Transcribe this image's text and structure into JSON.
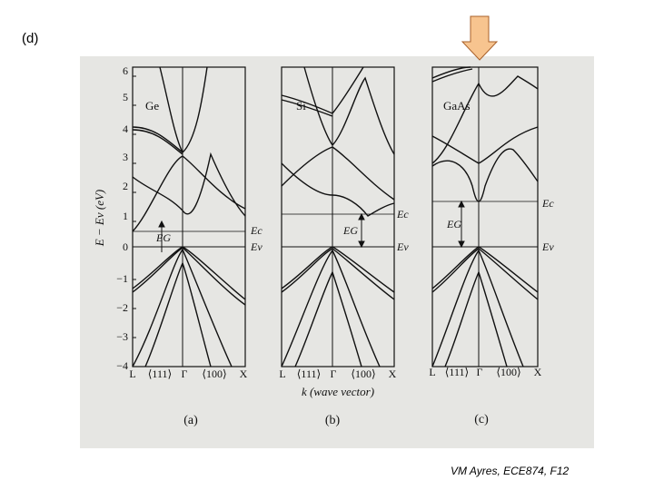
{
  "slide_label": "(d)",
  "footer": "VM Ayres, ECE874, F12",
  "axis": {
    "y_label": "E − Ev (eV)",
    "y_ticks": [
      "6",
      "5",
      "4",
      "3",
      "2",
      "1",
      "0",
      "−1",
      "−2",
      "−3",
      "−4"
    ],
    "x_label": "k (wave vector)"
  },
  "panels": [
    {
      "material": "Ge",
      "caption": "(a)",
      "gap": "EG",
      "ec": "Ec",
      "ev": "Ev",
      "kx": [
        "L",
        "⟨111⟩",
        "Γ",
        "⟨100⟩",
        "X"
      ]
    },
    {
      "material": "Si",
      "caption": "(b)",
      "gap": "EG",
      "ec": "Ec",
      "ev": "Ev",
      "kx": [
        "L",
        "⟨111⟩",
        "Γ",
        "⟨100⟩",
        "X"
      ]
    },
    {
      "material": "GaAs",
      "caption": "(c)",
      "gap": "EG",
      "ec": "Ec",
      "ev": "Ev",
      "kx": [
        "L",
        "⟨111⟩",
        "Γ",
        "⟨100⟩",
        "X"
      ]
    }
  ],
  "colors": {
    "arrow_fill": "#f7c48f",
    "arrow_stroke": "#a8602a",
    "scan_bg": "#e6e6e3",
    "line": "#111111"
  }
}
